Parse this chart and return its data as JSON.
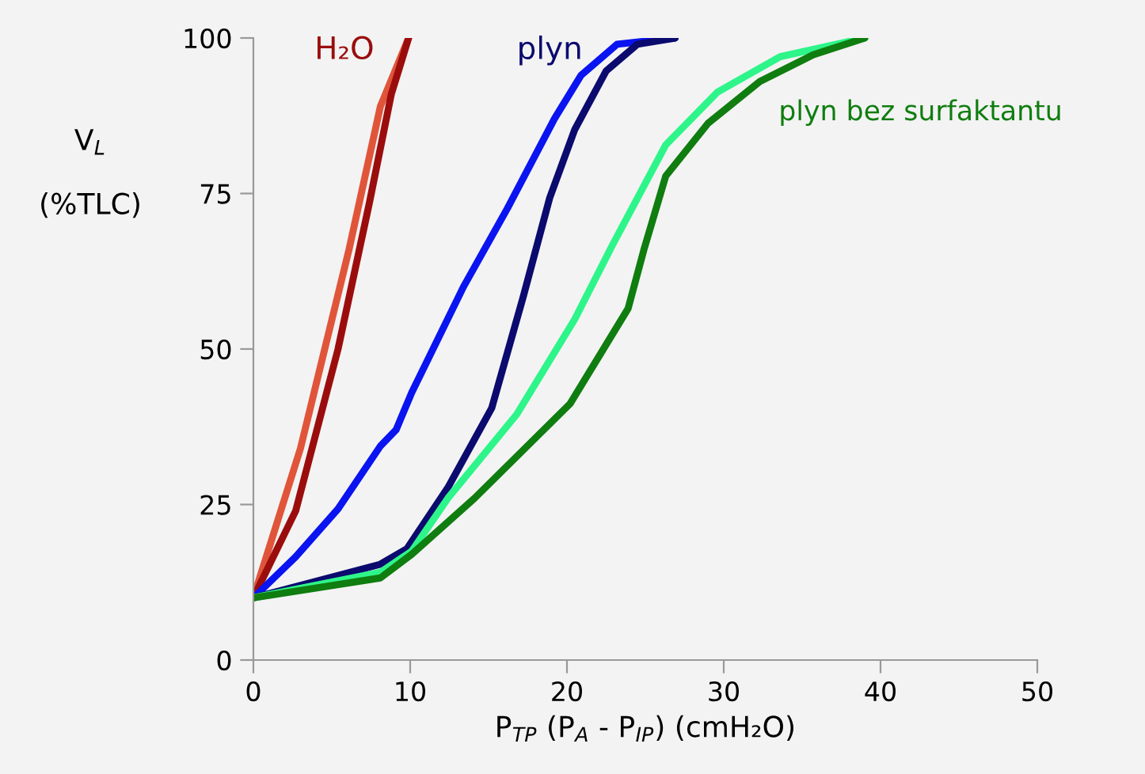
{
  "chart_data": {
    "type": "line",
    "xlabel": "P$_{TP}$ (P$_{A}$ - P$_{IP}$) (cmH₂O)",
    "ylabel": "V$_{L}$\n\n(%TLC)",
    "xlim": [
      0,
      50
    ],
    "ylim": [
      0,
      100
    ],
    "xticks": [
      0,
      10,
      20,
      30,
      40,
      50
    ],
    "yticks": [
      0,
      25,
      50,
      75,
      100
    ],
    "grid": false,
    "legend": false,
    "marker": "none",
    "line_style": "solid",
    "series": [
      {
        "color": "#e0553a",
        "x": [
          0,
          3.0,
          6.1,
          8.1,
          9.9
        ],
        "values": [
          10,
          34,
          66,
          89,
          100
        ]
      },
      {
        "name": "H₂O",
        "color": "#9b0d0d",
        "x": [
          0,
          2.7,
          5.4,
          7.4,
          8.8,
          9.9
        ],
        "values": [
          10,
          24,
          50,
          73.5,
          91,
          100
        ]
      },
      {
        "color": "#0a14f0",
        "x": [
          0,
          2.7,
          5.4,
          8.1,
          9.1,
          10.1,
          13.4,
          16.2,
          19.2,
          20.9,
          23.2,
          26.9
        ],
        "values": [
          10,
          16.6,
          24.3,
          34.4,
          37,
          43,
          60,
          72.6,
          87,
          94,
          99,
          100
        ]
      },
      {
        "name": "plyn",
        "color": "#0b0a6e",
        "x": [
          0,
          8.1,
          9.8,
          12.4,
          15.2,
          17.2,
          18.9,
          20.5,
          22.5,
          24.5,
          26.9
        ],
        "values": [
          10,
          15.4,
          17.9,
          27.7,
          40.5,
          58.3,
          74.3,
          85.3,
          94.7,
          99,
          100
        ]
      },
      {
        "color": "#2ef58a",
        "x": [
          0,
          8.1,
          10.1,
          12.4,
          16.8,
          20.5,
          22.9,
          26.3,
          29.6,
          33.6,
          39
        ],
        "values": [
          10,
          14.1,
          17.5,
          26,
          39.5,
          54.8,
          66.7,
          82.8,
          91.3,
          97,
          100
        ]
      },
      {
        "name": "plyn bez surfaktantu",
        "color": "#0f7d0f",
        "x": [
          0,
          8.1,
          10.1,
          14.1,
          20.2,
          23.9,
          24.9,
          26.3,
          29,
          32.3,
          35.7,
          39
        ],
        "values": [
          10,
          13.2,
          17,
          26,
          41.2,
          56.5,
          65.9,
          77.8,
          86.3,
          93,
          97.3,
          100
        ]
      }
    ]
  }
}
